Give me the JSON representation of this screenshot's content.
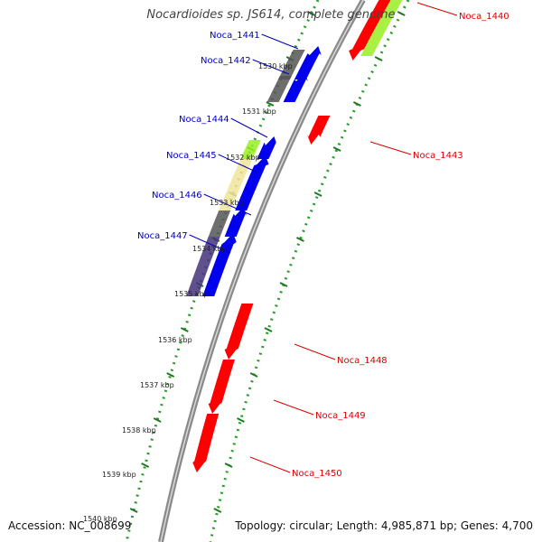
{
  "title": "Nocardioides sp. JS614, complete genome",
  "footer": {
    "accession": "Accession: NC_008699",
    "topology": "Topology: circular; Length: 4,985,871 bp; Genes: 4,700"
  },
  "colors": {
    "backbone": "#8a8a8a",
    "tick_ring": "#2a9a2a",
    "reverse_label": "#0000bb",
    "forward_label": "#dd0000"
  },
  "tick_labels": [
    "1530 kbp",
    "1531 kbp",
    "1532 kbp",
    "1533 kbp",
    "1534 kbp",
    "1535 kbp",
    "1536 kbp",
    "1537 kbp",
    "1538 kbp",
    "1539 kbp",
    "1540 kbp"
  ],
  "gene_labels": [
    {
      "text": "Noca_1440",
      "strand": "forward"
    },
    {
      "text": "Noca_1441",
      "strand": "reverse"
    },
    {
      "text": "Noca_1442",
      "strand": "reverse"
    },
    {
      "text": "Noca_1443",
      "strand": "forward"
    },
    {
      "text": "Noca_1444",
      "strand": "reverse"
    },
    {
      "text": "Noca_1445",
      "strand": "reverse"
    },
    {
      "text": "Noca_1446",
      "strand": "reverse"
    },
    {
      "text": "Noca_1447",
      "strand": "reverse"
    },
    {
      "text": "Noca_1448",
      "strand": "forward"
    },
    {
      "text": "Noca_1449",
      "strand": "forward"
    },
    {
      "text": "Noca_1450",
      "strand": "forward"
    }
  ],
  "gene_features": [
    {
      "name": "Noca_1440",
      "strand": "forward",
      "color": "#ff0000",
      "category_color": "#99ee22"
    },
    {
      "name": "Noca_1441",
      "strand": "reverse",
      "color": "#0000ee",
      "category_color": "#555555"
    },
    {
      "name": "Noca_1442",
      "strand": "reverse",
      "color": "#0000ee",
      "category_color": "#555555"
    },
    {
      "name": "Noca_1443",
      "strand": "forward",
      "color": "#ff0000",
      "category_color": ""
    },
    {
      "name": "Noca_1444",
      "strand": "reverse",
      "color": "#0000ee",
      "category_color": "#99ee22"
    },
    {
      "name": "Noca_1445",
      "strand": "reverse",
      "color": "#0000ee",
      "category_color": "#eee49a"
    },
    {
      "name": "Noca_1446",
      "strand": "reverse",
      "color": "#0000ee",
      "category_color": "#555555"
    },
    {
      "name": "Noca_1447",
      "strand": "reverse",
      "color": "#0000ee",
      "category_color": "#44337a"
    },
    {
      "name": "Noca_1448",
      "strand": "forward",
      "color": "#ff0000",
      "category_color": ""
    },
    {
      "name": "Noca_1449",
      "strand": "forward",
      "color": "#ff0000",
      "category_color": ""
    },
    {
      "name": "Noca_1450",
      "strand": "forward",
      "color": "#ff0000",
      "category_color": ""
    }
  ]
}
